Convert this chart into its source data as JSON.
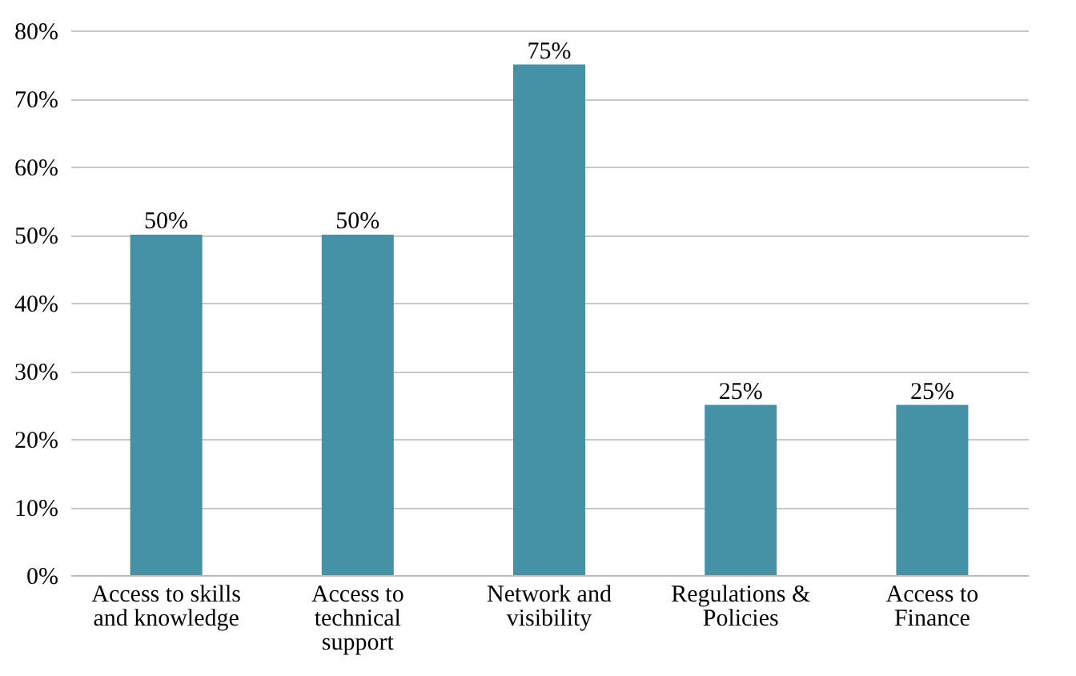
{
  "chart_data": {
    "type": "bar",
    "categories": [
      "Access to skills\nand knowledge",
      "Access to\ntechnical\nsupport",
      "Network and\nvisibility",
      "Regulations &\nPolicies",
      "Access to\nFinance"
    ],
    "values": [
      50,
      50,
      75,
      25,
      25
    ],
    "value_labels": [
      "50%",
      "50%",
      "75%",
      "25%",
      "25%"
    ],
    "color": "#4592a6",
    "ylim": [
      0,
      80
    ],
    "yticks": [
      {
        "value": 0,
        "label": "0%"
      },
      {
        "value": 10,
        "label": "10%"
      },
      {
        "value": 20,
        "label": "20%"
      },
      {
        "value": 30,
        "label": "30%"
      },
      {
        "value": 40,
        "label": "40%"
      },
      {
        "value": 50,
        "label": "50%"
      },
      {
        "value": 60,
        "label": "60%"
      },
      {
        "value": 70,
        "label": "70%"
      },
      {
        "value": 80,
        "label": "80%"
      }
    ],
    "grid": "y"
  }
}
